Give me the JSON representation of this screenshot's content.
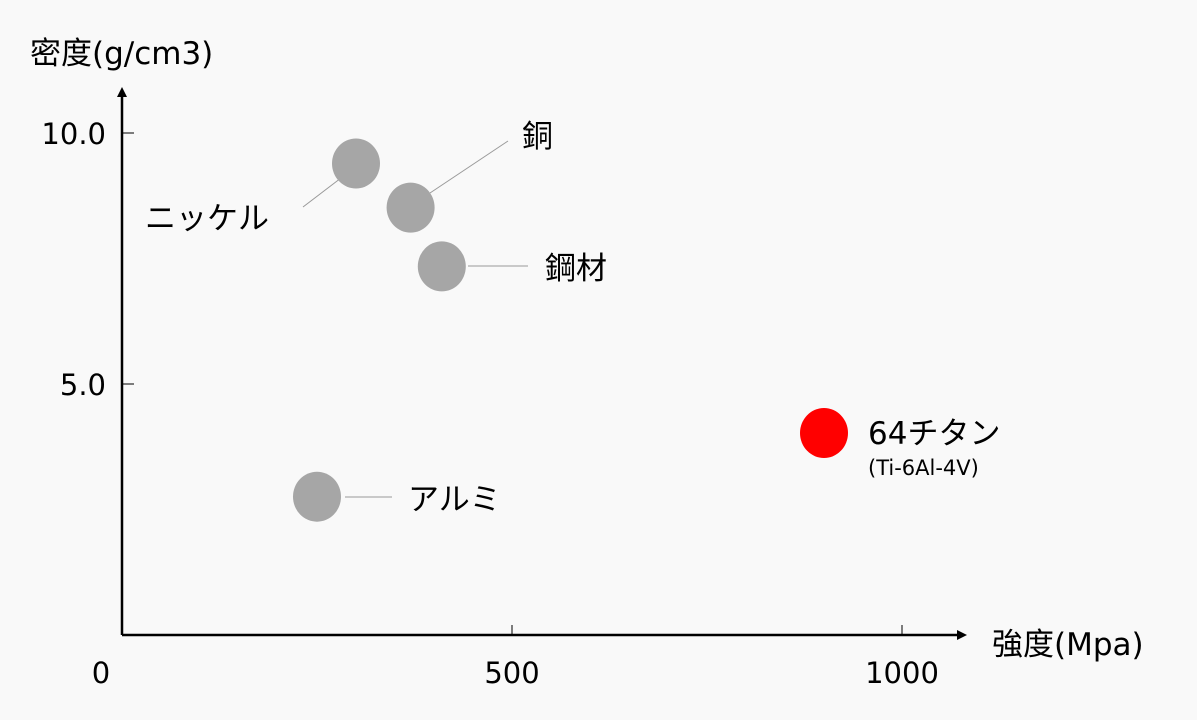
{
  "chart_data": {
    "type": "scatter",
    "xlabel": "強度(Mpa)",
    "ylabel": "密度(g/cm3)",
    "xlim": [
      0,
      1080
    ],
    "ylim": [
      0,
      11
    ],
    "x_ticks": [
      {
        "value": 0,
        "label": "0"
      },
      {
        "value": 500,
        "label": "500"
      },
      {
        "value": 1000,
        "label": "1000"
      }
    ],
    "y_ticks": [
      {
        "value": 5.0,
        "label": "5.0"
      },
      {
        "value": 10.0,
        "label": "10.0"
      }
    ],
    "grid": false,
    "colors": {
      "default": "#a6a6a6",
      "highlight": "#ff0000"
    },
    "points": [
      {
        "label": "ニッケル",
        "x": 300,
        "y": 9.5,
        "highlight": false
      },
      {
        "label": "銅",
        "x": 370,
        "y": 8.6,
        "highlight": false
      },
      {
        "label": "鋼材",
        "x": 410,
        "y": 7.4,
        "highlight": false
      },
      {
        "label": "アルミ",
        "x": 250,
        "y": 2.7,
        "highlight": false
      },
      {
        "label": "64チタン",
        "sublabel": "(Ti-6Al-4V)",
        "x": 900,
        "y": 4.0,
        "highlight": true
      }
    ]
  }
}
